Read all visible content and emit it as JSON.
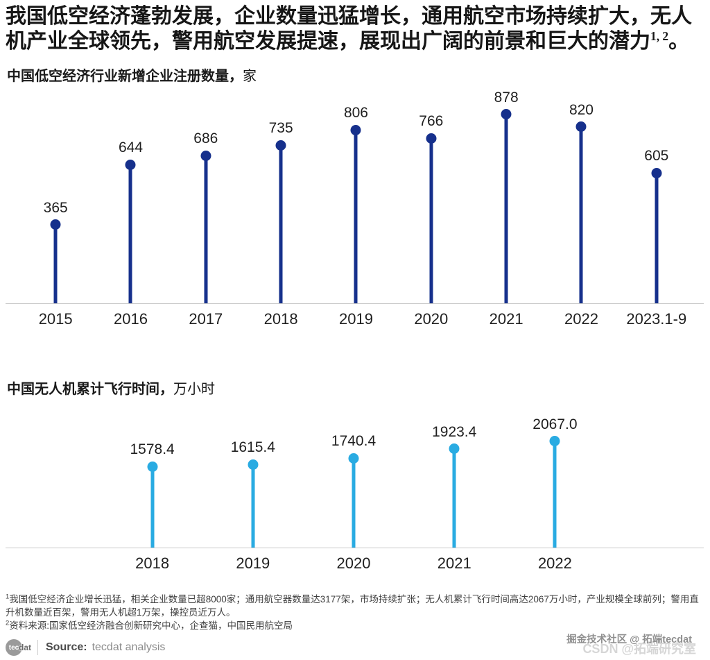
{
  "header": {
    "line1": "我国低空经济蓬勃发展，企业数量迅猛增长，通用航空市场持续扩大，无人",
    "line2": "机产业全球领先，警用航空发展提速，展现出广阔的前景和巨大的潜力",
    "superscript": "1, 2",
    "end_punct": "。"
  },
  "chart_data": [
    {
      "type": "lollipop",
      "title": "中国低空经济行业新增企业注册数量，",
      "unit": "家",
      "categories": [
        "2015",
        "2016",
        "2017",
        "2018",
        "2019",
        "2020",
        "2021",
        "2022",
        "2023.1-9"
      ],
      "values": [
        365,
        644,
        686,
        735,
        806,
        766,
        878,
        820,
        605
      ],
      "value_labels": [
        "365",
        "644",
        "686",
        "735",
        "806",
        "766",
        "878",
        "820",
        "605"
      ],
      "color": "#16308c",
      "ylim": [
        0,
        990
      ],
      "grid": false,
      "legend": null
    },
    {
      "type": "lollipop",
      "title": "中国无人机累计飞行时间，",
      "unit": "万小时",
      "categories": [
        "2018",
        "2019",
        "2020",
        "2021",
        "2022"
      ],
      "values": [
        1578.4,
        1615.4,
        1740.4,
        1923.4,
        2067.0
      ],
      "value_labels": [
        "1578.4",
        "1615.4",
        "1740.4",
        "1923.4",
        "2067.0"
      ],
      "color": "#29abe2",
      "ylim": [
        0,
        2700
      ],
      "grid": false,
      "legend": null
    }
  ],
  "footnotes": {
    "note1_sup": "1",
    "note1_text": "我国低空经济企业增长迅猛，相关企业数量已超8000家；通用航空器数量达3177架，市场持续扩张；无人机累计飞行时间高达2067万小时，产业规模全球前列；警用直升机数量近百架，警用无人机超1万架，操控员近万人。",
    "note2_sup": "2",
    "note2_text": "资料来源:国家低空经济融合创新研究中心，企查猫，中国民用航空局"
  },
  "source_bar": {
    "logo_circle_text": "tec",
    "logo_suffix_text": "dat",
    "source_label": "Source:",
    "source_value": "tecdat analysis"
  },
  "watermarks": {
    "wm1": "掘金技术社区 @ 拓端tecdat",
    "wm2": "CSDN @拓端研究室"
  },
  "colors": {
    "chart1_accent": "#16308c",
    "chart2_accent": "#29abe2",
    "axis_line": "#c9c9c9"
  }
}
